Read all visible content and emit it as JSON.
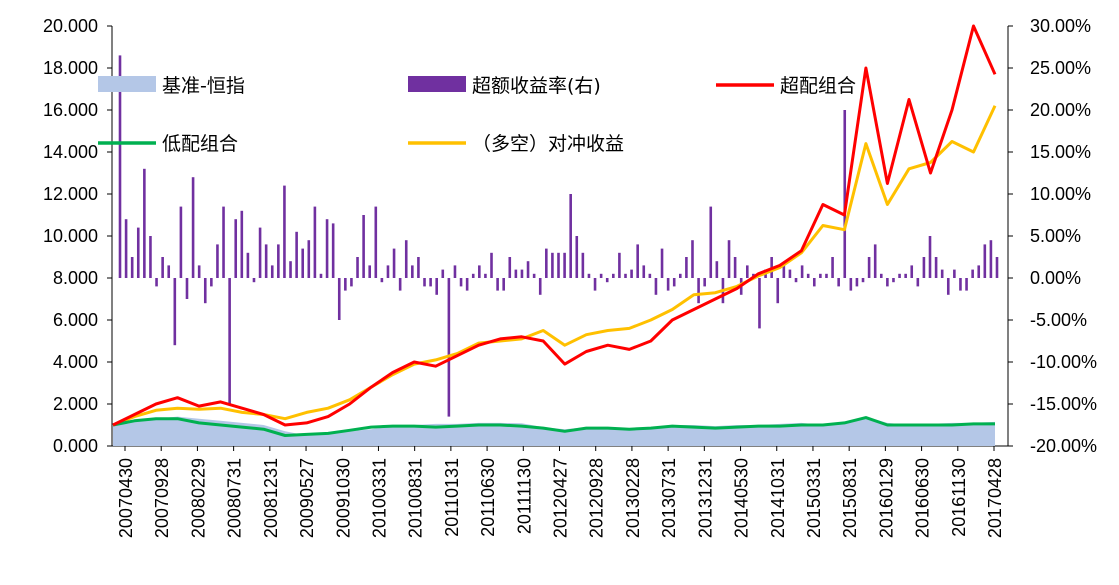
{
  "chart_data": {
    "type": "combo",
    "title": "",
    "left_axis": {
      "min": 0,
      "max": 20,
      "step": 2,
      "tick_labels": [
        "0.000",
        "2.000",
        "4.000",
        "6.000",
        "8.000",
        "10.000",
        "12.000",
        "14.000",
        "16.000",
        "18.000",
        "20.000"
      ]
    },
    "right_axis": {
      "min": -20,
      "max": 30,
      "step": 5,
      "tick_labels": [
        "-20.00%",
        "-15.00%",
        "-10.00%",
        "-5.00%",
        "0.00%",
        "5.00%",
        "10.00%",
        "15.00%",
        "20.00%",
        "25.00%",
        "30.00%"
      ]
    },
    "x_tick_labels": [
      "20070430",
      "20070928",
      "20080229",
      "20080731",
      "20081231",
      "20090527",
      "20091030",
      "20100331",
      "20100831",
      "20110131",
      "20110630",
      "20111130",
      "20120427",
      "20120928",
      "20130228",
      "20130731",
      "20131231",
      "20140530",
      "20141031",
      "20150331",
      "20150831",
      "20160129",
      "20160630",
      "20161130",
      "20170428"
    ],
    "legend": [
      "基准-恒指",
      "超额收益率(右)",
      "超配组合",
      "低配组合",
      "（多空）对冲收益"
    ],
    "colors": {
      "benchmark": "#b4c7e7",
      "excess": "#7030a0",
      "overweight": "#ff0000",
      "underweight": "#00b050",
      "hedge": "#ffc000"
    },
    "series": {
      "benchmark": [
        1.0,
        1.2,
        1.3,
        1.4,
        1.3,
        1.2,
        1.1,
        1.0,
        0.7,
        0.5,
        0.6,
        0.7,
        0.8,
        0.95,
        1.0,
        1.05,
        1.05,
        1.1,
        1.1,
        1.08,
        0.9,
        0.8,
        0.9,
        0.9,
        0.85,
        0.9,
        1.0,
        1.0,
        0.95,
        1.0,
        1.0,
        1.05,
        1.1,
        1.0,
        1.1,
        1.4,
        1.1,
        1.0,
        1.05,
        1.1,
        1.1,
        1.15
      ],
      "overweight": [
        1.0,
        1.5,
        2.0,
        2.3,
        1.9,
        2.1,
        1.8,
        1.5,
        1.0,
        1.1,
        1.4,
        2.0,
        2.8,
        3.5,
        4.0,
        3.8,
        4.3,
        4.8,
        5.1,
        5.2,
        5.0,
        3.9,
        4.5,
        4.8,
        4.6,
        5.0,
        6.0,
        6.5,
        7.0,
        7.5,
        8.2,
        8.6,
        9.3,
        11.5,
        11.0,
        18.0,
        12.5,
        16.5,
        13.0,
        16.0,
        20.0,
        17.7
      ],
      "underweight": [
        1.0,
        1.2,
        1.3,
        1.3,
        1.1,
        1.0,
        0.9,
        0.8,
        0.5,
        0.55,
        0.6,
        0.75,
        0.9,
        0.95,
        0.95,
        0.9,
        0.95,
        1.0,
        1.0,
        0.95,
        0.85,
        0.7,
        0.85,
        0.85,
        0.8,
        0.85,
        0.95,
        0.9,
        0.85,
        0.9,
        0.95,
        0.95,
        1.0,
        1.0,
        1.1,
        1.35,
        1.0,
        1.0,
        1.0,
        1.0,
        1.05,
        1.05
      ],
      "hedge": [
        1.0,
        1.4,
        1.7,
        1.8,
        1.75,
        1.8,
        1.6,
        1.5,
        1.3,
        1.6,
        1.8,
        2.2,
        2.8,
        3.4,
        3.9,
        4.1,
        4.4,
        4.9,
        5.0,
        5.1,
        5.5,
        4.8,
        5.3,
        5.5,
        5.6,
        6.0,
        6.5,
        7.2,
        7.3,
        7.6,
        8.1,
        8.5,
        9.2,
        10.5,
        10.3,
        14.4,
        11.5,
        13.2,
        13.5,
        14.5,
        14.0,
        16.2
      ]
    },
    "series_note": "line values per time step in left-axis units",
    "excess_bars_pct": [
      26.5,
      7.0,
      2.5,
      6.0,
      13.0,
      5.0,
      -1.0,
      2.5,
      1.5,
      -8.0,
      8.5,
      -2.5,
      12.0,
      1.5,
      -3.0,
      -1.0,
      4.0,
      8.5,
      -15.0,
      7.0,
      8.0,
      3.0,
      -0.5,
      6.0,
      4.0,
      1.5,
      4.0,
      11.0,
      2.0,
      5.5,
      3.5,
      4.5,
      8.5,
      0.5,
      7.0,
      6.5,
      -5.0,
      -1.5,
      -1.0,
      2.5,
      7.5,
      1.5,
      8.5,
      -0.5,
      1.5,
      3.5,
      -1.5,
      4.5,
      1.5,
      2.5,
      -1.0,
      -1.0,
      -2.0,
      1.0,
      -16.5,
      1.5,
      -1.0,
      -1.5,
      0.5,
      1.5,
      0.5,
      3.0,
      -1.5,
      -1.5,
      2.5,
      1.0,
      1.0,
      2.0,
      0.5,
      -2.0,
      3.5,
      3.0,
      3.0,
      3.0,
      10.0,
      5.0,
      3.0,
      0.5,
      -1.5,
      0.5,
      -0.5,
      0.5,
      3.0,
      0.5,
      1.0,
      4.0,
      1.5,
      0.5,
      -2.0,
      3.5,
      -1.5,
      -1.0,
      0.5,
      2.5,
      4.5,
      -3.0,
      -1.0,
      8.5,
      2.0,
      -3.0,
      4.5,
      2.5,
      -2.0,
      1.5,
      0.5,
      -6.0,
      1.0,
      2.5,
      -3.0,
      1.5,
      1.0,
      -0.5,
      1.5,
      0.5,
      -1.0,
      0.5,
      0.5,
      2.5,
      -1.0,
      20.0,
      -1.5,
      -1.0,
      -0.5,
      2.5,
      4.0,
      0.5,
      -1.0,
      -0.5,
      0.5,
      0.5,
      1.5,
      -1.0,
      2.5,
      5.0,
      2.5,
      1.0,
      -2.0,
      1.0,
      -1.5,
      -1.5,
      1.0,
      1.5,
      4.0,
      4.5,
      2.5
    ]
  }
}
